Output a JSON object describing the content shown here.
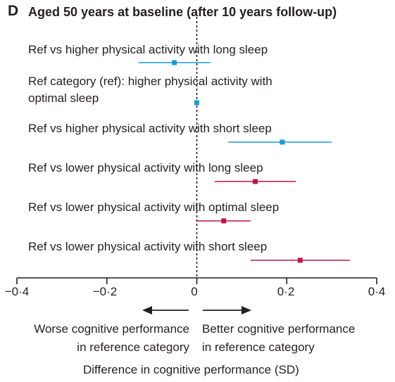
{
  "chart_data": {
    "type": "forest",
    "panel_letter": "D",
    "title": "Aged 50 years at baseline (after 10 years follow-up)",
    "xlabel": "Difference in cognitive performance (SD)",
    "xlim": [
      -0.4,
      0.4
    ],
    "xticks": [
      -0.4,
      -0.2,
      0,
      0.2,
      0.4
    ],
    "xtick_labels": [
      "−0·4",
      "−0·2",
      "0",
      "0·2",
      "0·4"
    ],
    "reference_line": 0,
    "direction_notes": {
      "left": "Worse cognitive performance\nin reference category",
      "right": "Better cognitive performance\nin reference category"
    },
    "colors": {
      "higher": "#1b9bd1",
      "lower": "#c0134a",
      "text": "#231f20"
    },
    "rows": [
      {
        "label": "Ref vs higher physical activity with long sleep",
        "group": "higher",
        "estimate": -0.05,
        "lower": -0.13,
        "upper": 0.03
      },
      {
        "label": "Ref category (ref): higher physical activity with\noptimal sleep",
        "group": "higher",
        "estimate": 0.0,
        "lower": 0.0,
        "upper": 0.0
      },
      {
        "label": "Ref vs higher physical activity with short sleep",
        "group": "higher",
        "estimate": 0.19,
        "lower": 0.07,
        "upper": 0.3
      },
      {
        "label": "Ref vs lower physical activity with long sleep",
        "group": "lower",
        "estimate": 0.13,
        "lower": 0.04,
        "upper": 0.22
      },
      {
        "label": "Ref vs lower physical activity with optimal sleep",
        "group": "lower",
        "estimate": 0.06,
        "lower": 0.0,
        "upper": 0.12
      },
      {
        "label": "Ref vs lower physical activity with short sleep",
        "group": "lower",
        "estimate": 0.23,
        "lower": 0.12,
        "upper": 0.34
      }
    ]
  }
}
